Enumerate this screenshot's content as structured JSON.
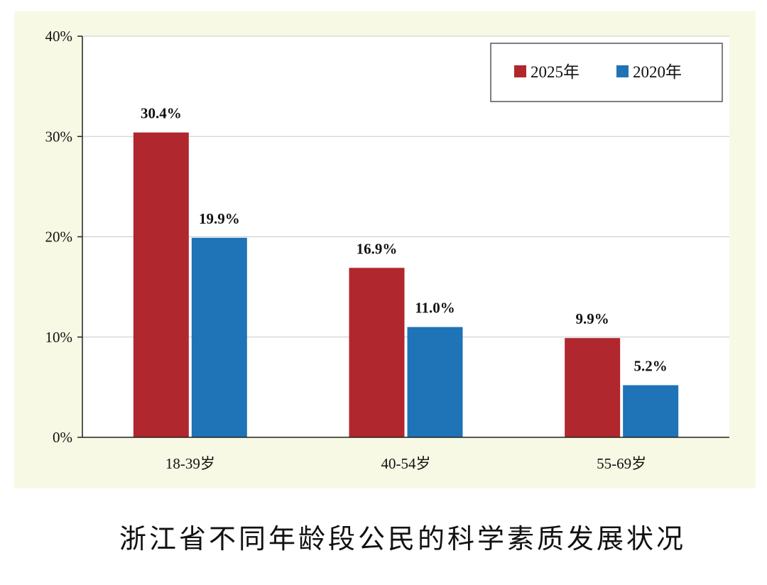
{
  "caption": "浙江省不同年龄段公民的科学素质发展状况",
  "chart_data": {
    "type": "bar",
    "categories": [
      "18-39岁",
      "40-54岁",
      "55-69岁"
    ],
    "series": [
      {
        "name": "2025年",
        "values": [
          30.4,
          16.9,
          9.9
        ],
        "labels": [
          "30.4%",
          "16.9%",
          "9.9%"
        ],
        "color": "#b0272d"
      },
      {
        "name": "2020年",
        "values": [
          19.9,
          11.0,
          5.2
        ],
        "labels": [
          "19.9%",
          "11.0%",
          "5.2%"
        ],
        "color": "#1f73b7"
      }
    ],
    "ylim": [
      0,
      40
    ],
    "yticks": [
      0,
      10,
      20,
      30,
      40
    ],
    "ytick_labels": [
      "0%",
      "10%",
      "20%",
      "30%",
      "40%"
    ],
    "grid": true,
    "legend_position": "top-right",
    "background_color": "#f8f9e4"
  }
}
